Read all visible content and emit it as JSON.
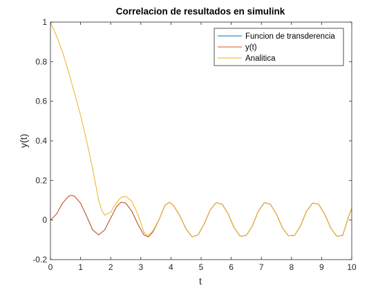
{
  "chart_data": {
    "type": "line",
    "title": "Correlacion de resultados en simulink",
    "xlabel": "t",
    "ylabel": "y(t)",
    "xlim": [
      0,
      10
    ],
    "ylim": [
      -0.2,
      1
    ],
    "xticks": [
      "0",
      "1",
      "2",
      "3",
      "4",
      "5",
      "6",
      "7",
      "8",
      "9",
      "10"
    ],
    "yticks": [
      "-0.2",
      "0",
      "0.2",
      "0.4",
      "0.6",
      "0.8",
      "1"
    ],
    "grid": false,
    "legend_position": "top-right",
    "series": [
      {
        "name": "Funcion de transderencia",
        "color": "#0072BD",
        "x": [
          0,
          0.2,
          0.4,
          0.6,
          0.7,
          0.8,
          1.0,
          1.2,
          1.4,
          1.6,
          1.8,
          2.0,
          2.2,
          2.35,
          2.5,
          2.7,
          2.9,
          3.1,
          3.25,
          3.4,
          3.6,
          3.8,
          3.95,
          4.1,
          4.3,
          4.5,
          4.7,
          4.9,
          5.1,
          5.3,
          5.5,
          5.7,
          5.9,
          6.1,
          6.3,
          6.5,
          6.7,
          6.9,
          7.1,
          7.3,
          7.5,
          7.7,
          7.9,
          8.1,
          8.3,
          8.5,
          8.7,
          8.9,
          9.1,
          9.3,
          9.5,
          9.7,
          9.9,
          10.0
        ],
        "y": [
          0,
          0.03,
          0.085,
          0.12,
          0.125,
          0.12,
          0.085,
          0.02,
          -0.05,
          -0.075,
          -0.05,
          0.01,
          0.07,
          0.09,
          0.085,
          0.045,
          -0.02,
          -0.075,
          -0.085,
          -0.06,
          0.0,
          0.075,
          0.09,
          0.07,
          0.02,
          -0.045,
          -0.085,
          -0.075,
          -0.02,
          0.05,
          0.088,
          0.08,
          0.03,
          -0.04,
          -0.082,
          -0.078,
          -0.03,
          0.045,
          0.088,
          0.08,
          0.03,
          -0.04,
          -0.08,
          -0.078,
          -0.03,
          0.045,
          0.086,
          0.08,
          0.03,
          -0.04,
          -0.082,
          -0.078,
          0.02,
          0.058
        ]
      },
      {
        "name": "y(t)",
        "color": "#D95319",
        "x": [
          0,
          0.2,
          0.4,
          0.6,
          0.7,
          0.8,
          1.0,
          1.2,
          1.4,
          1.6,
          1.8,
          2.0,
          2.2,
          2.35,
          2.5,
          2.7,
          2.9,
          3.1,
          3.25,
          3.4,
          3.6,
          3.8,
          3.95,
          4.1,
          4.3,
          4.5,
          4.7,
          4.9,
          5.1,
          5.3,
          5.5,
          5.7,
          5.9,
          6.1,
          6.3,
          6.5,
          6.7,
          6.9,
          7.1,
          7.3,
          7.5,
          7.7,
          7.9,
          8.1,
          8.3,
          8.5,
          8.7,
          8.9,
          9.1,
          9.3,
          9.5,
          9.7,
          9.9,
          10.0
        ],
        "y": [
          0,
          0.03,
          0.085,
          0.12,
          0.125,
          0.12,
          0.085,
          0.02,
          -0.05,
          -0.075,
          -0.05,
          0.01,
          0.07,
          0.09,
          0.085,
          0.045,
          -0.02,
          -0.075,
          -0.085,
          -0.06,
          0.0,
          0.075,
          0.09,
          0.07,
          0.02,
          -0.045,
          -0.085,
          -0.075,
          -0.02,
          0.05,
          0.088,
          0.08,
          0.03,
          -0.04,
          -0.082,
          -0.078,
          -0.03,
          0.045,
          0.088,
          0.08,
          0.03,
          -0.04,
          -0.08,
          -0.078,
          -0.03,
          0.045,
          0.086,
          0.08,
          0.03,
          -0.04,
          -0.082,
          -0.078,
          0.02,
          0.058
        ]
      },
      {
        "name": "Analitica",
        "color": "#EDB120",
        "x": [
          0,
          0.2,
          0.4,
          0.6,
          0.8,
          1.0,
          1.2,
          1.4,
          1.5,
          1.6,
          1.7,
          1.8,
          2.0,
          2.2,
          2.35,
          2.5,
          2.7,
          2.9,
          3.1,
          3.2,
          3.3,
          3.4,
          3.6,
          3.8,
          3.95,
          4.1,
          4.3,
          4.5,
          4.7,
          4.9,
          5.1,
          5.3,
          5.5,
          5.7,
          5.9,
          6.1,
          6.3,
          6.5,
          6.7,
          6.9,
          7.1,
          7.3,
          7.5,
          7.7,
          7.9,
          8.1,
          8.3,
          8.5,
          8.7,
          8.9,
          9.1,
          9.3,
          9.5,
          9.7,
          9.9,
          10.0
        ],
        "y": [
          1,
          0.93,
          0.85,
          0.75,
          0.64,
          0.53,
          0.4,
          0.26,
          0.18,
          0.1,
          0.05,
          0.025,
          0.04,
          0.09,
          0.115,
          0.12,
          0.095,
          0.03,
          -0.06,
          -0.078,
          -0.072,
          -0.055,
          0.0,
          0.075,
          0.09,
          0.07,
          0.02,
          -0.045,
          -0.085,
          -0.075,
          -0.02,
          0.05,
          0.088,
          0.08,
          0.03,
          -0.04,
          -0.082,
          -0.078,
          -0.03,
          0.045,
          0.088,
          0.08,
          0.03,
          -0.04,
          -0.08,
          -0.078,
          -0.03,
          0.045,
          0.086,
          0.08,
          0.03,
          -0.04,
          -0.082,
          -0.078,
          0.02,
          0.058
        ]
      }
    ]
  }
}
